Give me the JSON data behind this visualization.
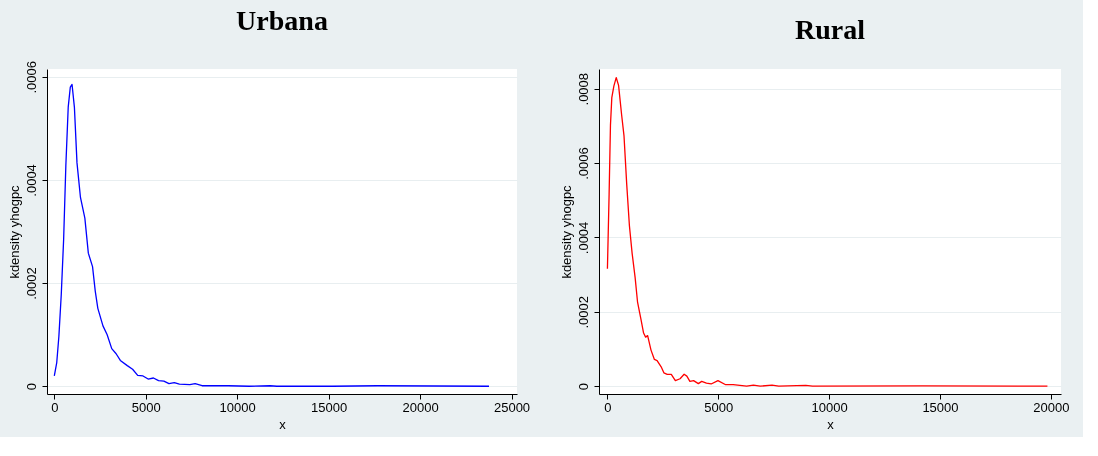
{
  "chart_data": [
    {
      "type": "line",
      "title": "Urbana",
      "xlabel": "x",
      "ylabel": "kdensity yhogpc",
      "grid": "y",
      "xlim": [
        -400,
        25300
      ],
      "ylim": [
        -1.5e-05,
        0.000615
      ],
      "xticks": [
        0,
        5000,
        10000,
        15000,
        20000,
        25000
      ],
      "yticks": [
        0,
        {
          "value": 0.0002,
          "label": ".0002"
        },
        {
          "value": 0.0004,
          "label": ".0004"
        },
        {
          "value": 0.0006,
          "label": ".0006"
        }
      ],
      "series": [
        {
          "color": "#0000ff",
          "x": [
            0,
            133,
            250,
            380,
            510,
            630,
            760,
            875,
            970,
            1100,
            1240,
            1430,
            1670,
            1860,
            2090,
            2240,
            2380,
            2660,
            2890,
            3140,
            3380,
            3610,
            3990,
            4280,
            4560,
            4850,
            5130,
            5420,
            5700,
            5990,
            6270,
            6560,
            6840,
            7410,
            7700,
            8080,
            9510,
            10650,
            11790,
            12170,
            15210,
            17680,
            23770
          ],
          "values": [
            2e-05,
            4.6e-05,
            9.7e-05,
            0.000178,
            0.000285,
            0.000427,
            0.000541,
            0.00058,
            0.000585,
            0.00054,
            0.000433,
            0.000366,
            0.000326,
            0.000258,
            0.000232,
            0.000184,
            0.000151,
            0.000117,
            0.0001,
            7.3e-05,
            6.3e-05,
            5e-05,
            4e-05,
            3.3e-05,
            2.1e-05,
            2e-05,
            1.4e-05,
            1.6e-05,
            1.1e-05,
            1e-05,
            5e-06,
            7e-06,
            4e-06,
            3e-06,
            5e-06,
            1e-06,
            1e-06,
            0,
            1e-06,
            0,
            0,
            1e-06,
            0
          ]
        }
      ]
    },
    {
      "type": "line",
      "title": "Rural",
      "xlabel": "x",
      "ylabel": "kdensity yhogpc",
      "grid": "y",
      "xlim": [
        -380,
        20460
      ],
      "ylim": [
        -2.1e-05,
        0.000853
      ],
      "xticks": [
        0,
        5000,
        10000,
        15000,
        20000
      ],
      "yticks": [
        0,
        {
          "value": 0.0002,
          "label": ".0002"
        },
        {
          "value": 0.0004,
          "label": ".0004"
        },
        {
          "value": 0.0006,
          "label": ".0006"
        },
        {
          "value": 0.0008,
          "label": ".0008"
        }
      ],
      "series": [
        {
          "color": "#ff0000",
          "x": [
            0,
            76,
            137,
            198,
            290,
            396,
            503,
            640,
            747,
            869,
            991,
            1113,
            1250,
            1357,
            1509,
            1631,
            1723,
            1814,
            1966,
            2119,
            2241,
            2424,
            2546,
            2698,
            2881,
            3064,
            3277,
            3460,
            3582,
            3720,
            3887,
            4101,
            4253,
            4466,
            4680,
            4985,
            5335,
            5671,
            6280,
            6585,
            6890,
            7424,
            7729,
            8948,
            9253,
            14207,
            19848
          ],
          "values": [
            0.000316,
            0.000516,
            0.000702,
            0.000776,
            0.000807,
            0.00083,
            0.000809,
            0.00073,
            0.000674,
            0.000544,
            0.000432,
            0.000358,
            0.000292,
            0.000227,
            0.000181,
            0.000143,
            0.000132,
            0.000136,
            9.7e-05,
            7.2e-05,
            6.9e-05,
            5.2e-05,
            3.6e-05,
            3.2e-05,
            3.2e-05,
            1.5e-05,
            2e-05,
            3.2e-05,
            2.7e-05,
            1.3e-05,
            1.5e-05,
            7e-06,
            1.3e-05,
            8e-06,
            6e-06,
            1.5e-05,
            4e-06,
            4e-06,
            0,
            3e-06,
            0,
            3e-06,
            0,
            2e-06,
            0,
            1e-06,
            0
          ]
        }
      ]
    }
  ]
}
